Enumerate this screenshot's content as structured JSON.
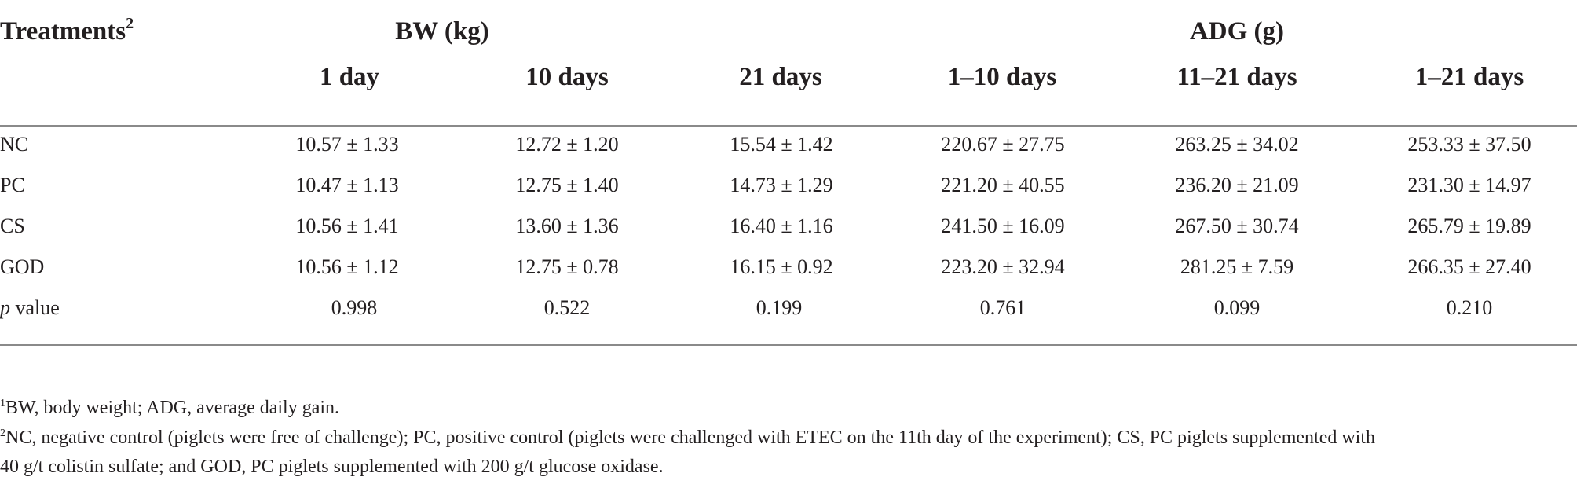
{
  "header": {
    "treatments": "Treatments",
    "treatments_sup": "2",
    "bw_group": "BW (kg)",
    "adg_group": "ADG (g)",
    "columns": [
      "1 day",
      "10 days",
      "21 days",
      "1–10 days",
      "11–21 days",
      "1–21 days"
    ]
  },
  "rows": [
    {
      "label": "NC",
      "values": [
        "10.57 ± 1.33",
        "12.72 ± 1.20",
        "15.54 ± 1.42",
        "220.67 ± 27.75",
        "263.25 ± 34.02",
        "253.33 ± 37.50"
      ]
    },
    {
      "label": "PC",
      "values": [
        "10.47 ± 1.13",
        "12.75 ± 1.40",
        "14.73 ± 1.29",
        "221.20 ± 40.55",
        "236.20 ± 21.09",
        "231.30 ± 14.97"
      ]
    },
    {
      "label": "CS",
      "values": [
        "10.56 ± 1.41",
        "13.60 ± 1.36",
        "16.40 ± 1.16",
        "241.50 ± 16.09",
        "267.50 ± 30.74",
        "265.79 ± 19.89"
      ]
    },
    {
      "label": "GOD",
      "values": [
        "10.56 ± 1.12",
        "12.75 ± 0.78",
        "16.15 ± 0.92",
        "223.20 ± 32.94",
        "281.25 ± 7.59",
        "266.35 ± 27.40"
      ]
    }
  ],
  "pvalue_row": {
    "label_italic": "p",
    "label_rest": " value",
    "values": [
      "0.998",
      "0.522",
      "0.199",
      "0.761",
      "0.099",
      "0.210"
    ]
  },
  "footnotes": {
    "fn1_sup": "1",
    "fn1_text": "BW, body weight; ADG, average daily gain.",
    "fn2_sup": "2",
    "fn2_line1": "NC, negative control (piglets were free of challenge); PC, positive control (piglets were challenged with ETEC on the 11th day of the experiment); CS, PC piglets supplemented with",
    "fn2_line2": "40 g/t colistin sulfate; and GOD, PC piglets supplemented with 200 g/t glucose oxidase."
  }
}
